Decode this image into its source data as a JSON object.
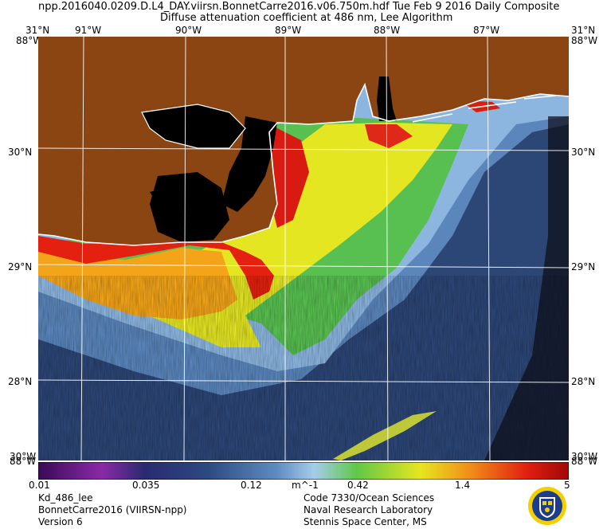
{
  "header": {
    "line1": "npp.2016040.0209.D.L4_DAY.viirsn.BonnetCarre2016.v06.750m.hdf      Tue Feb  9 2016 Daily Composite",
    "line2": "Diffuse attenuation coefficient at 486 nm, Lee Algorithm"
  },
  "axes": {
    "top_lon": [
      "31°N",
      "91°W",
      "90°W",
      "89°W",
      "88°W",
      "87°W",
      "31°N"
    ],
    "top_right_corner": "88°W",
    "top_left_corner": "88°W",
    "lat_left": [
      "30°N",
      "29°N",
      "28°N"
    ],
    "lat_right": [
      "30°N",
      "29°N",
      "28°N"
    ],
    "bottom_left_corner": "88°W",
    "bottom_right_corner": "88°W",
    "bottom_left_under": "30°W",
    "bottom_right_under": "30°W"
  },
  "colorbar": {
    "labels": [
      "0.01",
      "0.035",
      "0.12",
      "m^-1",
      "0.42",
      "1.4",
      "5"
    ]
  },
  "footer": {
    "left": [
      "Kd_486_lee",
      "BonnetCarre2016 (VIIRSN-npp)",
      "Version 6"
    ],
    "right": [
      "Code 7330/Ocean Sciences",
      "Naval Research Laboratory",
      "Stennis Space Center, MS"
    ]
  },
  "colors": {
    "land": "#8b4513",
    "deep_water": "#2f4a78",
    "mid_water": "#8ab4e0",
    "turbid": "#e8e820",
    "high": "#e02010"
  }
}
